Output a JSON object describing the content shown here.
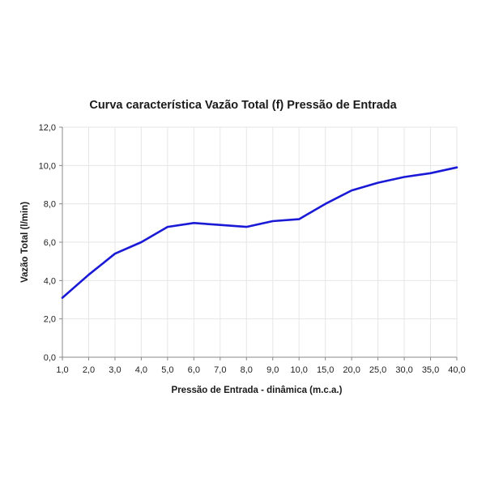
{
  "chart_data": {
    "type": "line",
    "title": "Curva característica Vazão Total (f) Pressão de Entrada",
    "xlabel": "Pressão de Entrada - dinâmica (m.c.a.)",
    "ylabel": "Vazão Total (l/min)",
    "x_scale": "categorical",
    "categories": [
      "1,0",
      "2,0",
      "3,0",
      "4,0",
      "5,0",
      "6,0",
      "7,0",
      "8,0",
      "9,0",
      "10,0",
      "15,0",
      "20,0",
      "25,0",
      "30,0",
      "35,0",
      "40,0"
    ],
    "y_ticks": [
      "0,0",
      "2,0",
      "4,0",
      "6,0",
      "8,0",
      "10,0",
      "12,0"
    ],
    "ylim": [
      0,
      12
    ],
    "grid": true,
    "legend": "none",
    "series": [
      {
        "values": [
          3.1,
          4.3,
          5.4,
          6.0,
          6.8,
          7.0,
          6.9,
          6.8,
          7.1,
          7.2,
          8.0,
          8.7,
          9.1,
          9.4,
          9.6,
          9.9
        ],
        "color": "#1a1ad6"
      }
    ],
    "colors": {
      "line": "#1a1ad6",
      "grid": "#e6e6e6",
      "axis": "#888888",
      "text": "#1a1a1a"
    }
  }
}
